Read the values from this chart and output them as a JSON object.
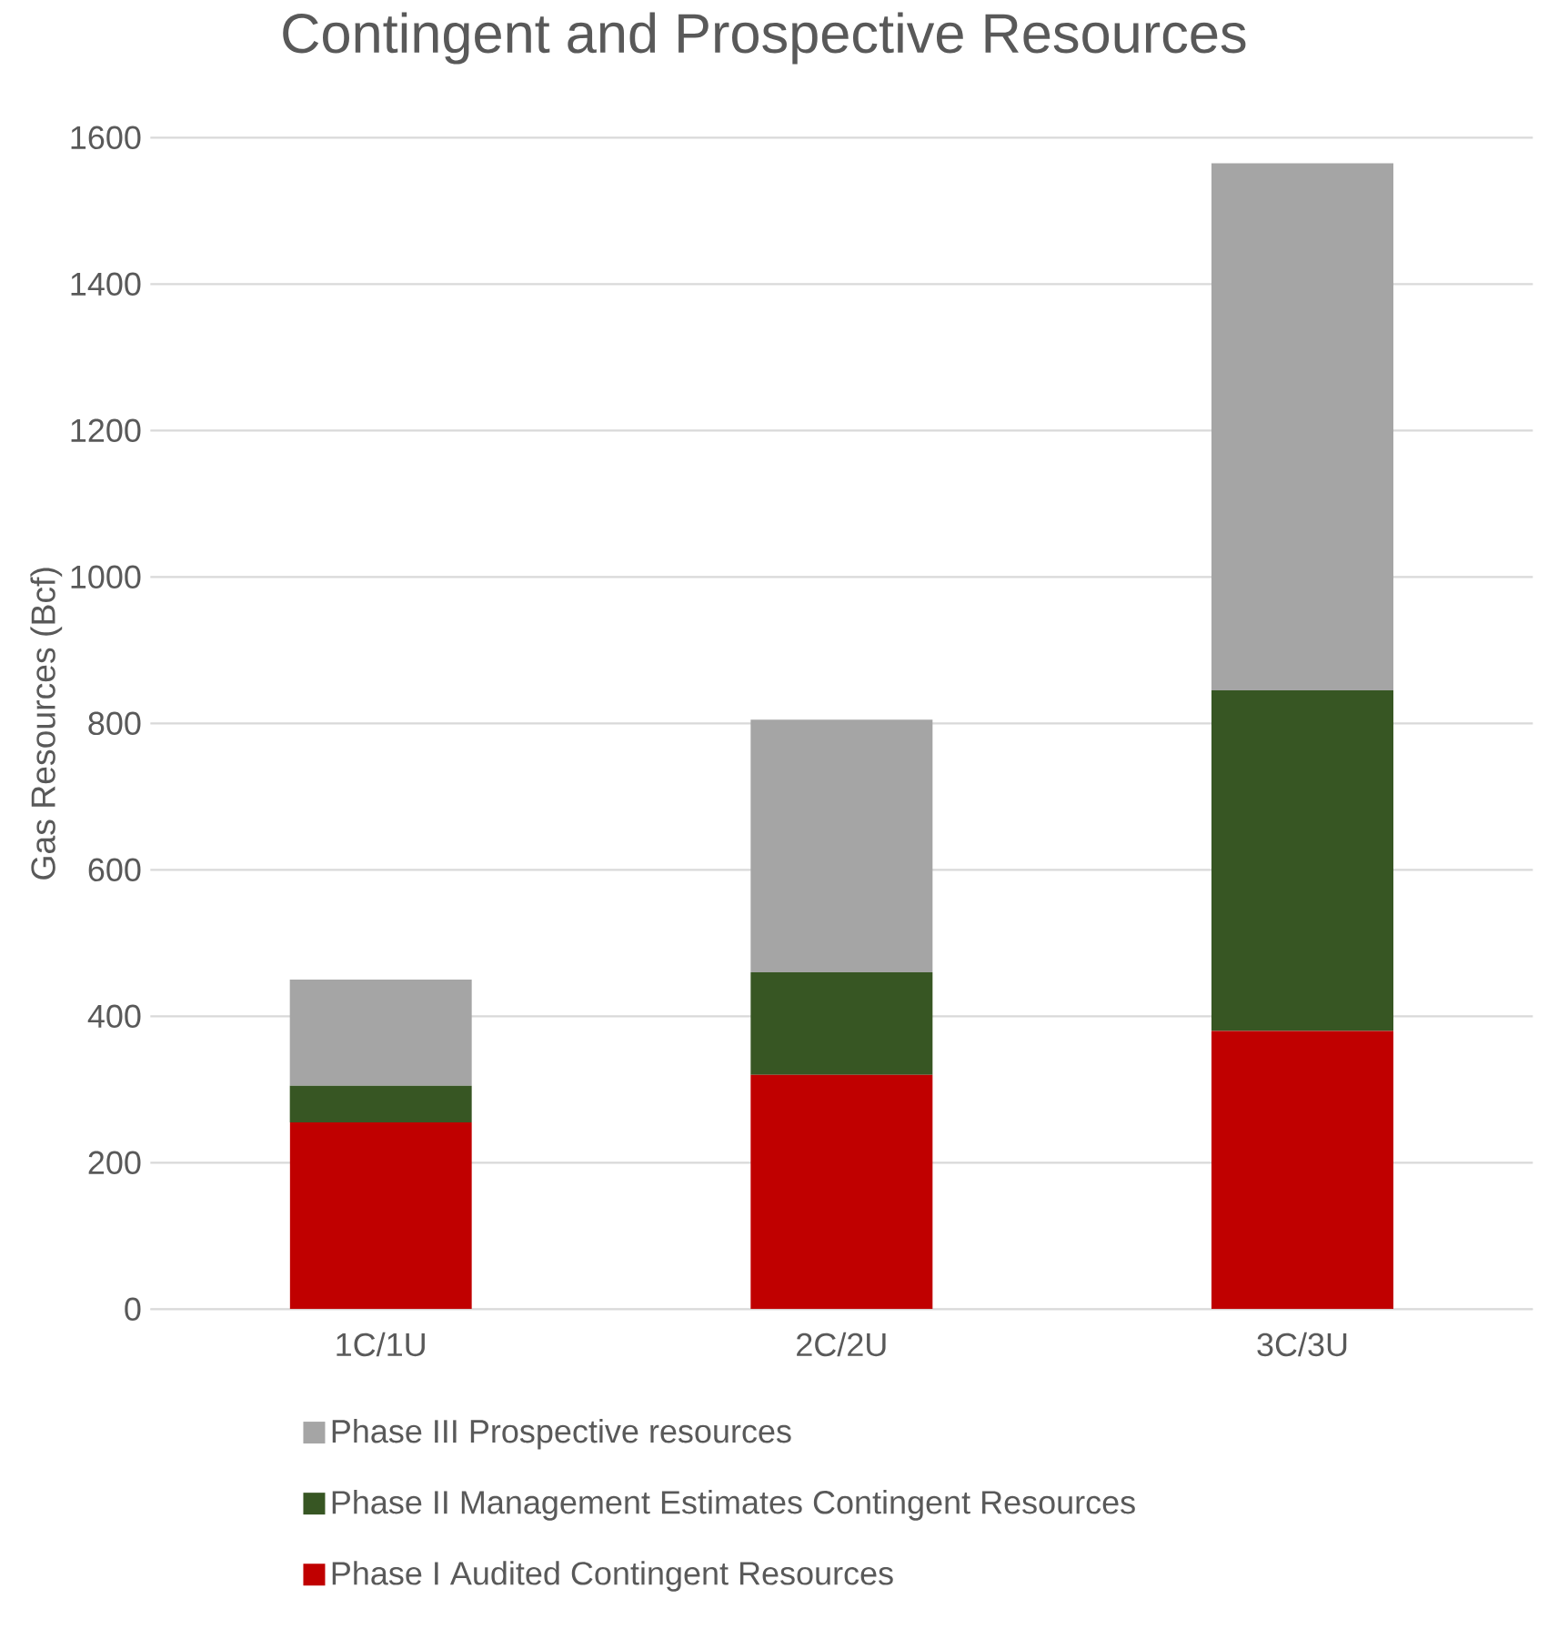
{
  "chart_data": {
    "type": "bar",
    "title": "Contingent and Prospective Resources",
    "ylabel": "Gas Resources (Bcf)",
    "categories": [
      "1C/1U",
      "2C/2U",
      "3C/3U"
    ],
    "stacked": true,
    "series": [
      {
        "name": "Phase I Audited Contingent Resources",
        "color": "#c00000",
        "values": [
          255,
          320,
          380
        ]
      },
      {
        "name": "Phase II Management Estimates Contingent Resources",
        "color": "#375623",
        "values": [
          50,
          140,
          465
        ]
      },
      {
        "name": "Phase III Prospective resources",
        "color": "#a5a5a5",
        "values": [
          145,
          345,
          720
        ]
      }
    ],
    "ylim": [
      0,
      1600
    ],
    "yticks": [
      0,
      200,
      400,
      600,
      800,
      1000,
      1200,
      1400,
      1600
    ],
    "grid": "y",
    "legend": "bottom"
  }
}
